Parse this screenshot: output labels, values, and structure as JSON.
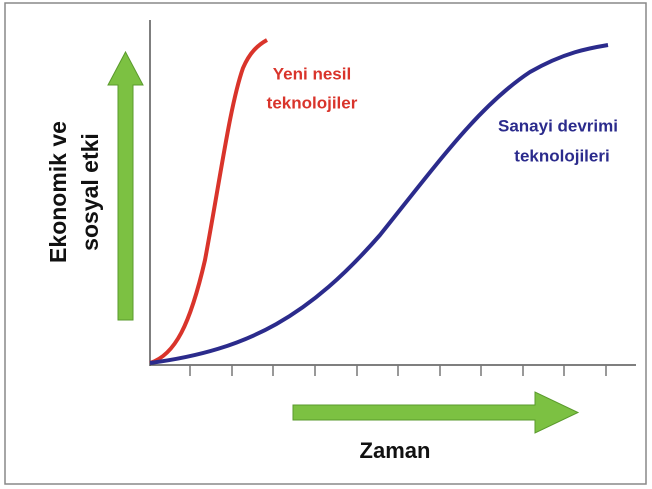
{
  "y_axis_label": [
    "Ekonomik ve",
    "sosyal etki"
  ],
  "x_axis_label": "Zaman",
  "curves": [
    {
      "label": [
        "Yeni nesil",
        "teknolojiler"
      ]
    },
    {
      "label": [
        "Sanayi devrimi",
        "teknolojileri"
      ]
    }
  ]
}
